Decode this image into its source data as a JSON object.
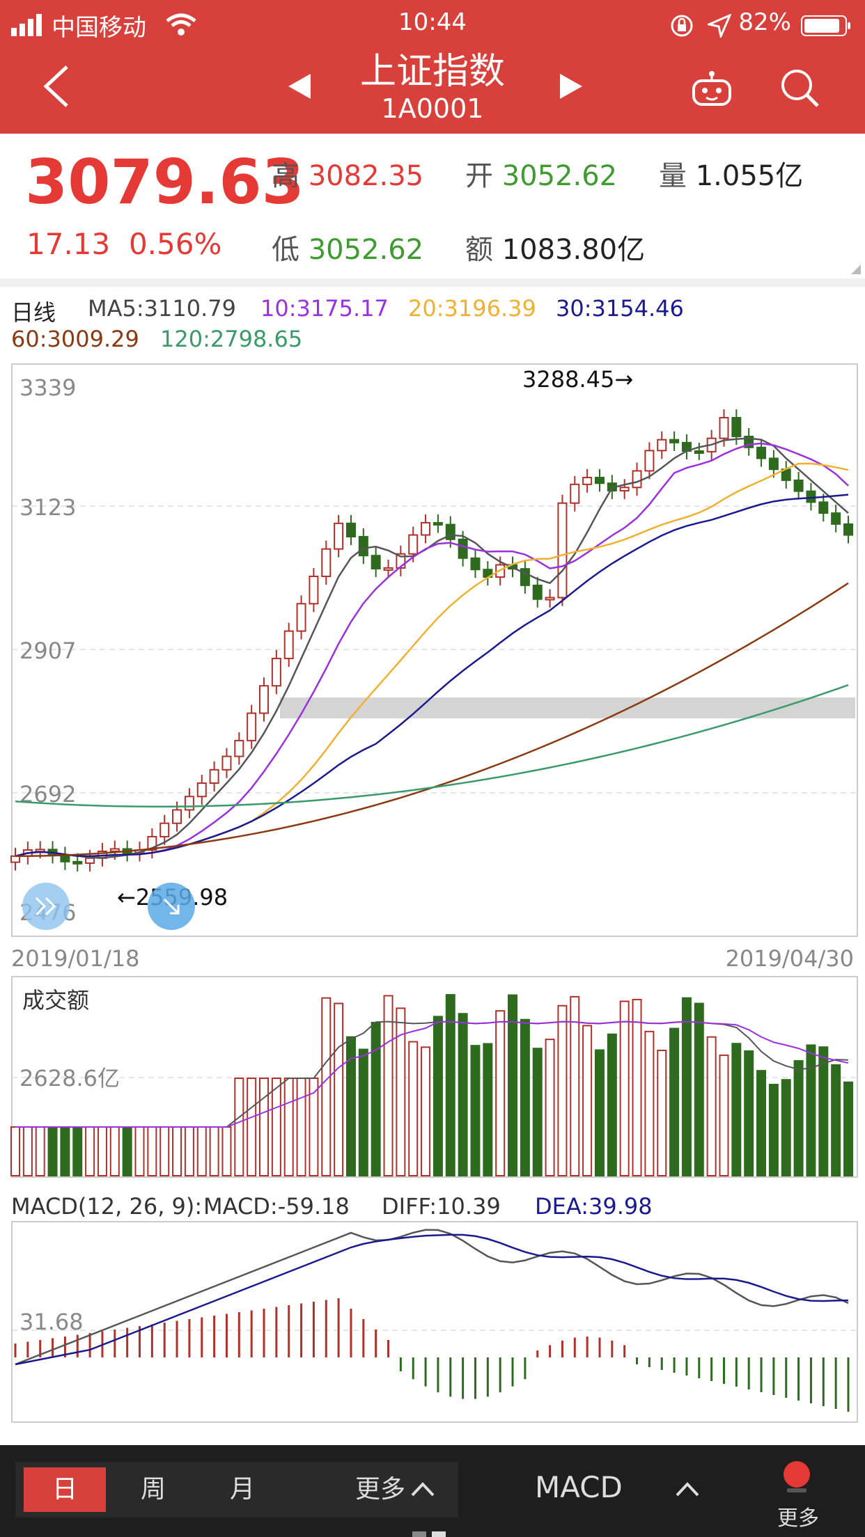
{
  "status_bar": {
    "carrier": "中国移动",
    "time": "10:44",
    "battery": "82%"
  },
  "header": {
    "title": "上证指数",
    "code": "1A0001"
  },
  "quote": {
    "price": "3079.63",
    "change": "17.13",
    "change_pct": "0.56%",
    "high_label": "高",
    "high": "3082.35",
    "open_label": "开",
    "open": "3052.62",
    "volume_label": "量",
    "volume": "1.055亿",
    "low_label": "低",
    "low": "3052.62",
    "amount_label": "额",
    "amount": "1083.80亿"
  },
  "ma_legend": {
    "period": "日线",
    "ma5": "MA5:3110.79",
    "ma10": "10:3175.17",
    "ma20": "20:3196.39",
    "ma30": "30:3154.46",
    "ma60": "60:3009.29",
    "ma120": "120:2798.65"
  },
  "colors": {
    "header": "#d8403b",
    "up": "#b0302a",
    "down": "#2e6b1e",
    "ma5": "#555555",
    "ma10": "#9b30e0",
    "ma20": "#f0b030",
    "ma30": "#1a1a90",
    "ma60": "#8a3a12",
    "ma120": "#3a9a6a"
  },
  "candle_chart": {
    "y_ticks": [
      "3339",
      "3123",
      "2907",
      "2692",
      "2476"
    ],
    "high_note": "3288.45→",
    "low_note": "←2559.98",
    "start_date": "2019/01/18",
    "end_date": "2019/04/30"
  },
  "volume_chart": {
    "label": "成交额",
    "tick": "2628.6亿"
  },
  "macd_chart": {
    "title": "MACD(12, 26, 9):",
    "macd": "MACD:-59.18",
    "diff": "DIFF:10.39",
    "dea": "DEA:39.98",
    "tick": "31.68"
  },
  "footer": {
    "tab_day": "日",
    "tab_week": "周",
    "tab_month": "月",
    "more": "更多",
    "indicator": "MACD",
    "more_right": "更多"
  }
}
